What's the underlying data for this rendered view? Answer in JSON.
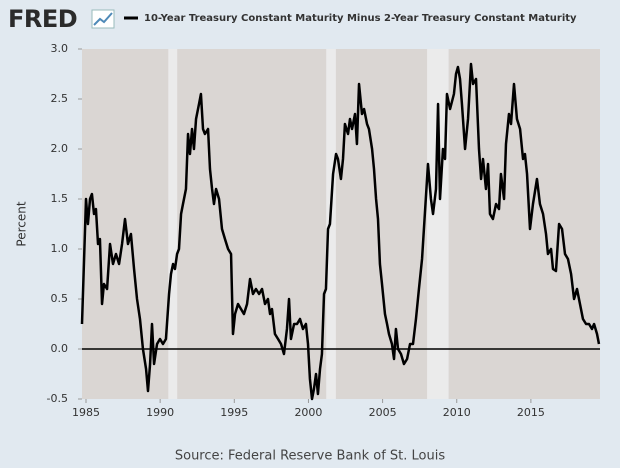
{
  "chart_data": {
    "type": "line",
    "brand": "FRED",
    "y_label": "Percent",
    "source": "Source: Federal Reserve Bank of St. Louis",
    "background": "#e1e9f0",
    "plot_color": "#dad6d3",
    "recession_color": "#ebebeb",
    "recessions": [
      [
        1990.55,
        1991.15
      ],
      [
        2001.2,
        2001.85
      ],
      [
        2008.0,
        2009.45
      ]
    ],
    "reference_line": 0,
    "xlim": [
      1984.73,
      2019.66
    ],
    "ylim": [
      -0.5,
      3.0
    ],
    "xticks": [
      1985,
      1990,
      1995,
      2000,
      2005,
      2010,
      2015
    ],
    "yticks": [
      -0.5,
      {
        "value": 0,
        "label": "0.0"
      },
      0.5,
      {
        "value": 1,
        "label": "1.0"
      },
      1.5,
      {
        "value": 2,
        "label": "2.0"
      },
      2.5,
      {
        "value": 3,
        "label": "3.0"
      }
    ],
    "x": [
      1984.73,
      1984.87,
      1985.0,
      1985.13,
      1985.27,
      1985.4,
      1985.54,
      1985.67,
      1985.81,
      1985.94,
      1986.08,
      1986.21,
      1986.42,
      1986.62,
      1986.82,
      1987.02,
      1987.23,
      1987.43,
      1987.63,
      1987.83,
      1988.03,
      1988.24,
      1988.44,
      1988.64,
      1988.84,
      1989.05,
      1989.18,
      1989.32,
      1989.45,
      1989.59,
      1989.79,
      1989.99,
      1990.19,
      1990.39,
      1990.6,
      1990.73,
      1990.87,
      1991.0,
      1991.14,
      1991.27,
      1991.41,
      1991.54,
      1991.74,
      1991.88,
      1992.01,
      1992.15,
      1992.28,
      1992.42,
      1992.62,
      1992.75,
      1992.89,
      1993.02,
      1993.23,
      1993.36,
      1993.5,
      1993.63,
      1993.77,
      1993.97,
      1994.17,
      1994.37,
      1994.58,
      1994.78,
      1994.91,
      1995.05,
      1995.25,
      1995.45,
      1995.65,
      1995.86,
      1996.06,
      1996.26,
      1996.46,
      1996.67,
      1996.87,
      1997.07,
      1997.27,
      1997.41,
      1997.54,
      1997.74,
      1997.95,
      1998.15,
      1998.35,
      1998.55,
      1998.69,
      1998.82,
      1999.03,
      1999.23,
      1999.43,
      1999.63,
      1999.83,
      1999.97,
      2000.1,
      2000.24,
      2000.37,
      2000.51,
      2000.64,
      2000.78,
      2000.91,
      2001.05,
      2001.18,
      2001.32,
      2001.45,
      2001.66,
      2001.86,
      2001.99,
      2002.19,
      2002.33,
      2002.46,
      2002.67,
      2002.8,
      2002.94,
      2003.14,
      2003.27,
      2003.41,
      2003.61,
      2003.75,
      2003.95,
      2004.08,
      2004.29,
      2004.42,
      2004.56,
      2004.69,
      2004.82,
      2004.96,
      2005.16,
      2005.3,
      2005.43,
      2005.63,
      2005.77,
      2005.9,
      2006.04,
      2006.24,
      2006.44,
      2006.65,
      2006.85,
      2007.05,
      2007.25,
      2007.45,
      2007.66,
      2008.06,
      2008.26,
      2008.4,
      2008.6,
      2008.74,
      2008.87,
      2009.07,
      2009.21,
      2009.34,
      2009.55,
      2009.81,
      2009.95,
      2010.08,
      2010.22,
      2010.35,
      2010.56,
      2010.76,
      2010.96,
      2011.1,
      2011.3,
      2011.5,
      2011.64,
      2011.77,
      2011.97,
      2012.11,
      2012.24,
      2012.44,
      2012.65,
      2012.85,
      2012.98,
      2013.19,
      2013.32,
      2013.52,
      2013.66,
      2013.86,
      2014.06,
      2014.27,
      2014.47,
      2014.6,
      2014.74,
      2014.94,
      2015.14,
      2015.41,
      2015.61,
      2015.82,
      2016.02,
      2016.15,
      2016.36,
      2016.49,
      2016.69,
      2016.9,
      2017.1,
      2017.3,
      2017.5,
      2017.71,
      2017.91,
      2018.11,
      2018.31,
      2018.51,
      2018.72,
      2018.92,
      2019.12,
      2019.26,
      2019.46,
      2019.59
    ],
    "series": [
      {
        "name": "10-Year Treasury Constant Maturity Minus 2-Year Treasury Constant Maturity",
        "color": "#000000",
        "values": [
          0.25,
          0.9,
          1.5,
          1.25,
          1.5,
          1.55,
          1.35,
          1.4,
          1.05,
          1.1,
          0.45,
          0.65,
          0.6,
          1.05,
          0.85,
          0.95,
          0.85,
          1.05,
          1.3,
          1.05,
          1.15,
          0.8,
          0.5,
          0.3,
          0.0,
          -0.2,
          -0.42,
          -0.15,
          0.25,
          -0.15,
          0.05,
          0.1,
          0.05,
          0.1,
          0.55,
          0.75,
          0.85,
          0.8,
          0.95,
          1.0,
          1.35,
          1.45,
          1.6,
          2.15,
          1.95,
          2.2,
          2.0,
          2.3,
          2.45,
          2.55,
          2.2,
          2.15,
          2.2,
          1.8,
          1.6,
          1.45,
          1.6,
          1.5,
          1.2,
          1.1,
          1.0,
          0.95,
          0.15,
          0.35,
          0.45,
          0.4,
          0.35,
          0.45,
          0.7,
          0.55,
          0.6,
          0.55,
          0.6,
          0.45,
          0.5,
          0.35,
          0.4,
          0.15,
          0.1,
          0.05,
          -0.05,
          0.2,
          0.5,
          0.1,
          0.25,
          0.25,
          0.3,
          0.2,
          0.25,
          0.05,
          -0.3,
          -0.5,
          -0.4,
          -0.25,
          -0.45,
          -0.2,
          -0.05,
          0.55,
          0.6,
          1.2,
          1.25,
          1.75,
          1.95,
          1.9,
          1.7,
          1.9,
          2.25,
          2.15,
          2.3,
          2.2,
          2.35,
          2.05,
          2.65,
          2.35,
          2.4,
          2.25,
          2.2,
          2.0,
          1.8,
          1.5,
          1.3,
          0.85,
          0.65,
          0.35,
          0.25,
          0.15,
          0.05,
          -0.1,
          0.2,
          0.0,
          -0.05,
          -0.15,
          -0.1,
          0.05,
          0.05,
          0.3,
          0.6,
          0.9,
          1.85,
          1.5,
          1.35,
          1.6,
          2.45,
          1.5,
          2.0,
          1.9,
          2.55,
          2.4,
          2.55,
          2.75,
          2.82,
          2.7,
          2.45,
          2.0,
          2.3,
          2.85,
          2.65,
          2.7,
          2.0,
          1.7,
          1.9,
          1.6,
          1.85,
          1.35,
          1.3,
          1.45,
          1.4,
          1.75,
          1.5,
          2.05,
          2.35,
          2.25,
          2.65,
          2.3,
          2.2,
          1.9,
          1.95,
          1.75,
          1.2,
          1.45,
          1.7,
          1.45,
          1.35,
          1.15,
          0.95,
          1.0,
          0.8,
          0.78,
          1.25,
          1.2,
          0.95,
          0.9,
          0.75,
          0.5,
          0.6,
          0.45,
          0.3,
          0.25,
          0.25,
          0.2,
          0.25,
          0.15,
          0.05
        ]
      }
    ]
  }
}
